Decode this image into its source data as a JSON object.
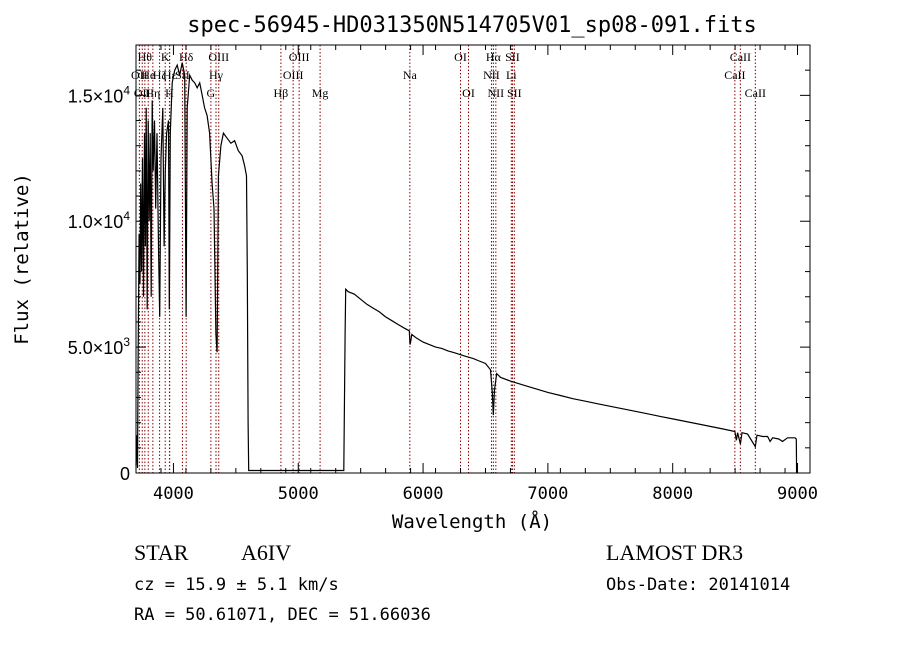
{
  "chart_data": {
    "type": "line",
    "title": "spec-56945-HD031350N514705V01_sp08-091.fits",
    "xlabel": "Wavelength (Å)",
    "ylabel": "Flux (relative)",
    "xlim": [
      3700,
      9100
    ],
    "ylim": [
      0,
      17000
    ],
    "x_ticks": [
      {
        "value": 4000,
        "label": "4000"
      },
      {
        "value": 5000,
        "label": "5000"
      },
      {
        "value": 6000,
        "label": "6000"
      },
      {
        "value": 7000,
        "label": "7000"
      },
      {
        "value": 8000,
        "label": "8000"
      },
      {
        "value": 9000,
        "label": "9000"
      }
    ],
    "y_ticks": [
      {
        "value": 0,
        "mantissa": "0",
        "exponent": ""
      },
      {
        "value": 5000,
        "mantissa": "5.0×10",
        "exponent": "3"
      },
      {
        "value": 10000,
        "mantissa": "1.0×10",
        "exponent": "4"
      },
      {
        "value": 15000,
        "mantissa": "1.5×10",
        "exponent": "4"
      }
    ],
    "series": [
      {
        "name": "spectrum",
        "segments": [
          [
            [
              3700,
              300
            ],
            [
              3705,
              1500
            ],
            [
              3712,
              200
            ],
            [
              3718,
              5000
            ],
            [
              3725,
              9500
            ],
            [
              3732,
              7500
            ],
            [
              3738,
              11500
            ],
            [
              3745,
              8000
            ],
            [
              3752,
              12500
            ],
            [
              3760,
              7000
            ],
            [
              3768,
              13500
            ],
            [
              3775,
              9000
            ],
            [
              3782,
              14500
            ],
            [
              3790,
              6500
            ],
            [
              3798,
              14000
            ],
            [
              3806,
              10000
            ],
            [
              3814,
              13500
            ],
            [
              3822,
              7000
            ],
            [
              3830,
              14800
            ],
            [
              3838,
              12000
            ],
            [
              3848,
              14000
            ],
            [
              3858,
              10500
            ],
            [
              3868,
              13500
            ],
            [
              3880,
              9000
            ],
            [
              3890,
              6200
            ],
            [
              3900,
              12500
            ],
            [
              3915,
              14500
            ],
            [
              3925,
              9000
            ],
            [
              3935,
              12000
            ],
            [
              3945,
              13500
            ],
            [
              3960,
              14000
            ],
            [
              3967,
              6500
            ],
            [
              3975,
              13500
            ],
            [
              3990,
              15500
            ],
            [
              4010,
              16000
            ],
            [
              4030,
              16200
            ],
            [
              4050,
              15800
            ],
            [
              4070,
              16300
            ],
            [
              4090,
              15800
            ],
            [
              4101,
              6200
            ],
            [
              4110,
              14500
            ],
            [
              4130,
              15800
            ],
            [
              4150,
              15600
            ],
            [
              4170,
              15500
            ],
            [
              4190,
              15300
            ],
            [
              4210,
              15500
            ],
            [
              4230,
              15000
            ],
            [
              4250,
              14500
            ],
            [
              4270,
              14200
            ],
            [
              4290,
              13500
            ],
            [
              4310,
              11500
            ],
            [
              4325,
              10500
            ],
            [
              4340,
              5500
            ],
            [
              4350,
              4800
            ],
            [
              4360,
              11800
            ],
            [
              4380,
              13000
            ],
            [
              4400,
              13500
            ],
            [
              4430,
              13300
            ],
            [
              4460,
              13100
            ],
            [
              4490,
              13200
            ],
            [
              4520,
              12800
            ],
            [
              4550,
              12600
            ],
            [
              4570,
              12200
            ],
            [
              4585,
              11800
            ],
            [
              4592,
              8000
            ],
            [
              4598,
              2000
            ],
            [
              4603,
              100
            ],
            [
              5365,
              100
            ],
            [
              5375,
              5500
            ],
            [
              5380,
              7300
            ],
            [
              5400,
              7200
            ],
            [
              5450,
              7100
            ],
            [
              5500,
              6900
            ],
            [
              5550,
              6700
            ],
            [
              5600,
              6550
            ],
            [
              5650,
              6400
            ],
            [
              5700,
              6200
            ],
            [
              5750,
              6050
            ],
            [
              5800,
              5900
            ],
            [
              5850,
              5750
            ],
            [
              5890,
              5650
            ],
            [
              5895,
              5100
            ],
            [
              5900,
              5200
            ],
            [
              5910,
              5500
            ],
            [
              5950,
              5350
            ],
            [
              6000,
              5200
            ],
            [
              6050,
              5100
            ],
            [
              6100,
              5000
            ],
            [
              6150,
              4950
            ],
            [
              6200,
              4850
            ],
            [
              6250,
              4780
            ],
            [
              6300,
              4700
            ],
            [
              6350,
              4620
            ],
            [
              6400,
              4550
            ],
            [
              6450,
              4450
            ],
            [
              6500,
              4350
            ],
            [
              6540,
              4100
            ],
            [
              6555,
              3200
            ],
            [
              6563,
              2300
            ],
            [
              6572,
              3300
            ],
            [
              6590,
              3950
            ],
            [
              6620,
              3800
            ],
            [
              6700,
              3650
            ],
            [
              6800,
              3500
            ],
            [
              6900,
              3350
            ],
            [
              7000,
              3200
            ],
            [
              7100,
              3080
            ],
            [
              7200,
              2950
            ],
            [
              7300,
              2850
            ],
            [
              7400,
              2750
            ],
            [
              7500,
              2650
            ],
            [
              7600,
              2550
            ],
            [
              7700,
              2450
            ],
            [
              7800,
              2350
            ],
            [
              7900,
              2250
            ],
            [
              8000,
              2150
            ],
            [
              8100,
              2050
            ],
            [
              8200,
              1950
            ],
            [
              8300,
              1850
            ],
            [
              8400,
              1750
            ],
            [
              8498,
              1650
            ],
            [
              8510,
              1300
            ],
            [
              8520,
              1600
            ],
            [
              8542,
              1150
            ],
            [
              8555,
              1600
            ],
            [
              8600,
              1550
            ],
            [
              8662,
              1050
            ],
            [
              8675,
              1500
            ],
            [
              8720,
              1450
            ],
            [
              8760,
              1450
            ],
            [
              8780,
              1250
            ],
            [
              8800,
              1400
            ],
            [
              8850,
              1350
            ],
            [
              8880,
              1250
            ],
            [
              8920,
              1400
            ],
            [
              8980,
              1400
            ],
            [
              8990,
              1350
            ],
            [
              8993,
              0
            ]
          ]
        ]
      }
    ],
    "line_labels": [
      {
        "wavelength": 3727,
        "label": "OII",
        "row": 2
      },
      {
        "wavelength": 3750,
        "label": "OII",
        "row": 3
      },
      {
        "wavelength": 3771,
        "label": "Hθ",
        "row": 1
      },
      {
        "wavelength": 3798,
        "label": "He",
        "row": 2
      },
      {
        "wavelength": 3835,
        "label": "Hη",
        "row": 3
      },
      {
        "wavelength": 3889,
        "label": "Hζ",
        "row": 2
      },
      {
        "wavelength": 3934,
        "label": "K",
        "row": 1
      },
      {
        "wavelength": 3968,
        "label": "H",
        "row": 3
      },
      {
        "wavelength": 3970,
        "label": "Hε",
        "row": 2
      },
      {
        "wavelength": 4072,
        "label": "SII",
        "row": 2
      },
      {
        "wavelength": 4102,
        "label": "Hδ",
        "row": 1
      },
      {
        "wavelength": 4300,
        "label": "G",
        "row": 3
      },
      {
        "wavelength": 4341,
        "label": "Hγ",
        "row": 2
      },
      {
        "wavelength": 4363,
        "label": "OIII",
        "row": 1
      },
      {
        "wavelength": 4861,
        "label": "Hβ",
        "row": 3
      },
      {
        "wavelength": 4959,
        "label": "OIII",
        "row": 2
      },
      {
        "wavelength": 5007,
        "label": "OIII",
        "row": 1
      },
      {
        "wavelength": 5175,
        "label": "Mg",
        "row": 3
      },
      {
        "wavelength": 5894,
        "label": "Na",
        "row": 2
      },
      {
        "wavelength": 6300,
        "label": "OI",
        "row": 1
      },
      {
        "wavelength": 6364,
        "label": "OI",
        "row": 3
      },
      {
        "wavelength": 6548,
        "label": "NII",
        "row": 2
      },
      {
        "wavelength": 6563,
        "label": "Hα",
        "row": 1
      },
      {
        "wavelength": 6583,
        "label": "NII",
        "row": 3
      },
      {
        "wavelength": 6707,
        "label": "Li",
        "row": 2
      },
      {
        "wavelength": 6716,
        "label": "SII",
        "row": 1
      },
      {
        "wavelength": 6731,
        "label": "SII",
        "row": 3
      },
      {
        "wavelength": 8498,
        "label": "CaII",
        "row": 2
      },
      {
        "wavelength": 8542,
        "label": "CaII",
        "row": 1
      },
      {
        "wavelength": 8662,
        "label": "CaII",
        "row": 3
      }
    ],
    "colors": {
      "line": "#000000",
      "marker": "#8b0000",
      "axis": "#000000"
    }
  },
  "info": {
    "object_class": "STAR",
    "subclass": "A6IV",
    "survey": "LAMOST DR3",
    "redshift": "cz = 15.9 ± 5.1 km/s",
    "obs_date": "Obs-Date: 20141014",
    "coordinates": "RA =  50.61071, DEC =  51.66036"
  }
}
